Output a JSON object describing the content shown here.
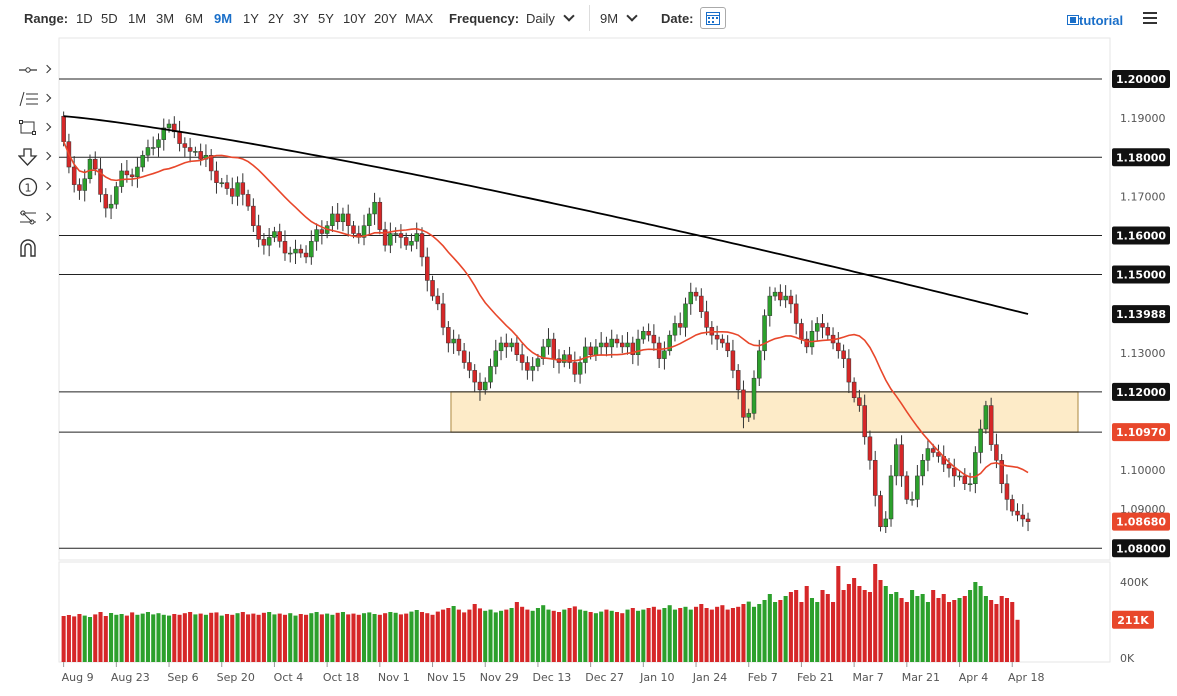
{
  "toolbar": {
    "range_label": "Range:",
    "ranges": [
      "1D",
      "5D",
      "1M",
      "3M",
      "6M",
      "9M",
      "1Y",
      "2Y",
      "3Y",
      "5Y",
      "10Y",
      "20Y",
      "MAX"
    ],
    "active_range": "9M",
    "frequency_label": "Frequency:",
    "frequency_value": "Daily",
    "period_value": "9M",
    "date_label": "Date:",
    "tutorial_label": "tutorial"
  },
  "tools": [
    "line-tool-icon",
    "fibonacci-tool-icon",
    "rectangle-tool-icon",
    "arrow-down-tool-icon",
    "annotation-number-icon",
    "pattern-tool-icon",
    "magnet-icon"
  ],
  "colors": {
    "up": "#2ca02c",
    "down": "#d62728",
    "ma_short": "#e8472b",
    "ma_long": "#000000",
    "zone_fill": "#fdebc8",
    "zone_stroke": "#b99a59",
    "accent": "#1a6fc9"
  },
  "chart_data": {
    "type": "candlestick",
    "ylim": [
      1.077,
      1.2105
    ],
    "yticks": [
      "1.19000",
      "1.17000",
      "1.13000",
      "1.10000",
      "1.09000"
    ],
    "volume_ticks": [
      "400K",
      "0K"
    ],
    "volume_ylim": [
      0,
      500000
    ],
    "xticks": [
      "Aug 9",
      "Aug 23",
      "Sep 6",
      "Sep 20",
      "Oct 4",
      "Oct 18",
      "Nov 1",
      "Nov 15",
      "Nov 29",
      "Dec 13",
      "Dec 27",
      "Jan 10",
      "Jan 24",
      "Feb 7",
      "Feb 21",
      "Mar 7",
      "Mar 21",
      "Apr 4",
      "Apr 18"
    ],
    "horizontal_levels": [
      {
        "price": 1.2,
        "label": "1.20000"
      },
      {
        "price": 1.18,
        "label": "1.18000"
      },
      {
        "price": 1.16,
        "label": "1.16000"
      },
      {
        "price": 1.15,
        "label": "1.15000"
      },
      {
        "price": 1.12,
        "label": "1.12000"
      },
      {
        "price": 1.1097,
        "label": "1.10970"
      },
      {
        "price": 1.08,
        "label": "1.08000"
      }
    ],
    "zone": {
      "x_start": "Nov 20",
      "price_top": 1.12,
      "price_bottom": 1.1097
    },
    "price_markers": [
      {
        "label": "1.13988",
        "value": 1.13988,
        "color": "#000000"
      },
      {
        "label": "1.10970",
        "value": 1.1097,
        "color": "#e8472b"
      },
      {
        "label": "1.08680",
        "value": 1.0868,
        "color": "#e8472b"
      }
    ],
    "volume_marker": {
      "label": "211K",
      "value": 211000,
      "color": "#e8472b"
    },
    "closes": [
      1.184,
      1.1775,
      1.173,
      1.1715,
      1.1745,
      1.1795,
      1.177,
      1.1705,
      1.167,
      1.168,
      1.1725,
      1.1765,
      1.1755,
      1.175,
      1.1775,
      1.1805,
      1.1825,
      1.1825,
      1.1845,
      1.1875,
      1.1885,
      1.1865,
      1.1835,
      1.1825,
      1.1815,
      1.1815,
      1.1795,
      1.1805,
      1.1765,
      1.1735,
      1.1735,
      1.172,
      1.17,
      1.1735,
      1.1705,
      1.1675,
      1.1625,
      1.159,
      1.1575,
      1.1595,
      1.161,
      1.1585,
      1.1555,
      1.1555,
      1.1565,
      1.1555,
      1.1545,
      1.1585,
      1.1615,
      1.1605,
      1.1625,
      1.1655,
      1.1635,
      1.1655,
      1.1625,
      1.1605,
      1.1595,
      1.1625,
      1.1655,
      1.1685,
      1.1615,
      1.1575,
      1.1605,
      1.1605,
      1.1595,
      1.1575,
      1.1585,
      1.1605,
      1.1545,
      1.1485,
      1.1445,
      1.1425,
      1.1365,
      1.1325,
      1.1335,
      1.1305,
      1.1275,
      1.1255,
      1.1225,
      1.1205,
      1.1225,
      1.1265,
      1.1305,
      1.1325,
      1.1315,
      1.1325,
      1.1295,
      1.1275,
      1.1255,
      1.1265,
      1.1285,
      1.1315,
      1.1335,
      1.1285,
      1.1275,
      1.1295,
      1.1275,
      1.1245,
      1.1275,
      1.1315,
      1.1295,
      1.1315,
      1.1325,
      1.1315,
      1.1335,
      1.1325,
      1.1315,
      1.1325,
      1.1295,
      1.1335,
      1.1355,
      1.1345,
      1.1325,
      1.1285,
      1.1305,
      1.1345,
      1.1375,
      1.1365,
      1.1425,
      1.1455,
      1.1445,
      1.1405,
      1.1365,
      1.1345,
      1.1335,
      1.1325,
      1.1305,
      1.1255,
      1.1205,
      1.1135,
      1.1145,
      1.1235,
      1.1305,
      1.1395,
      1.1445,
      1.1455,
      1.1435,
      1.1445,
      1.1425,
      1.1375,
      1.1335,
      1.1315,
      1.1355,
      1.1375,
      1.1365,
      1.1345,
      1.1325,
      1.1305,
      1.1285,
      1.1225,
      1.1185,
      1.1165,
      1.1085,
      1.1025,
      1.0935,
      1.0855,
      1.0875,
      1.0985,
      1.1065,
      1.0985,
      1.0925,
      1.0925,
      1.0985,
      1.1025,
      1.1055,
      1.1045,
      1.1035,
      1.1015,
      1.1005,
      1.0985,
      1.0985,
      1.0965,
      1.0965,
      1.1045,
      1.1105,
      1.1165,
      1.1065,
      1.1025,
      1.0965,
      1.0925,
      1.0895,
      1.0885,
      1.0875,
      1.0868
    ],
    "volumes": [
      230,
      235,
      228,
      240,
      232,
      225,
      238,
      250,
      230,
      245,
      236,
      240,
      232,
      248,
      236,
      242,
      250,
      238,
      244,
      236,
      232,
      240,
      236,
      244,
      250,
      238,
      242,
      236,
      246,
      248,
      232,
      240,
      236,
      244,
      250,
      238,
      242,
      236,
      246,
      250,
      238,
      242,
      236,
      244,
      232,
      240,
      236,
      244,
      250,
      238,
      242,
      236,
      246,
      250,
      238,
      242,
      236,
      244,
      248,
      240,
      236,
      244,
      250,
      246,
      238,
      242,
      252,
      260,
      250,
      244,
      236,
      252,
      262,
      270,
      280,
      262,
      248,
      262,
      290,
      268,
      256,
      262,
      248,
      256,
      262,
      270,
      300,
      276,
      262,
      256,
      270,
      284,
      262,
      256,
      250,
      262,
      270,
      278,
      262,
      256,
      250,
      244,
      252,
      262,
      256,
      250,
      244,
      262,
      270,
      256,
      262,
      270,
      276,
      262,
      270,
      284,
      262,
      270,
      276,
      262,
      276,
      290,
      270,
      262,
      276,
      284,
      262,
      270,
      276,
      290,
      302,
      276,
      290,
      310,
      340,
      300,
      310,
      330,
      350,
      360,
      300,
      380,
      320,
      300,
      360,
      340,
      300,
      480,
      360,
      390,
      420,
      380,
      360,
      350,
      490,
      410,
      380,
      340,
      350,
      320,
      300,
      360,
      330,
      340,
      300,
      360,
      320,
      340,
      300,
      310,
      320,
      330,
      360,
      400,
      380,
      330,
      310,
      290,
      330,
      320,
      300,
      211
    ]
  }
}
